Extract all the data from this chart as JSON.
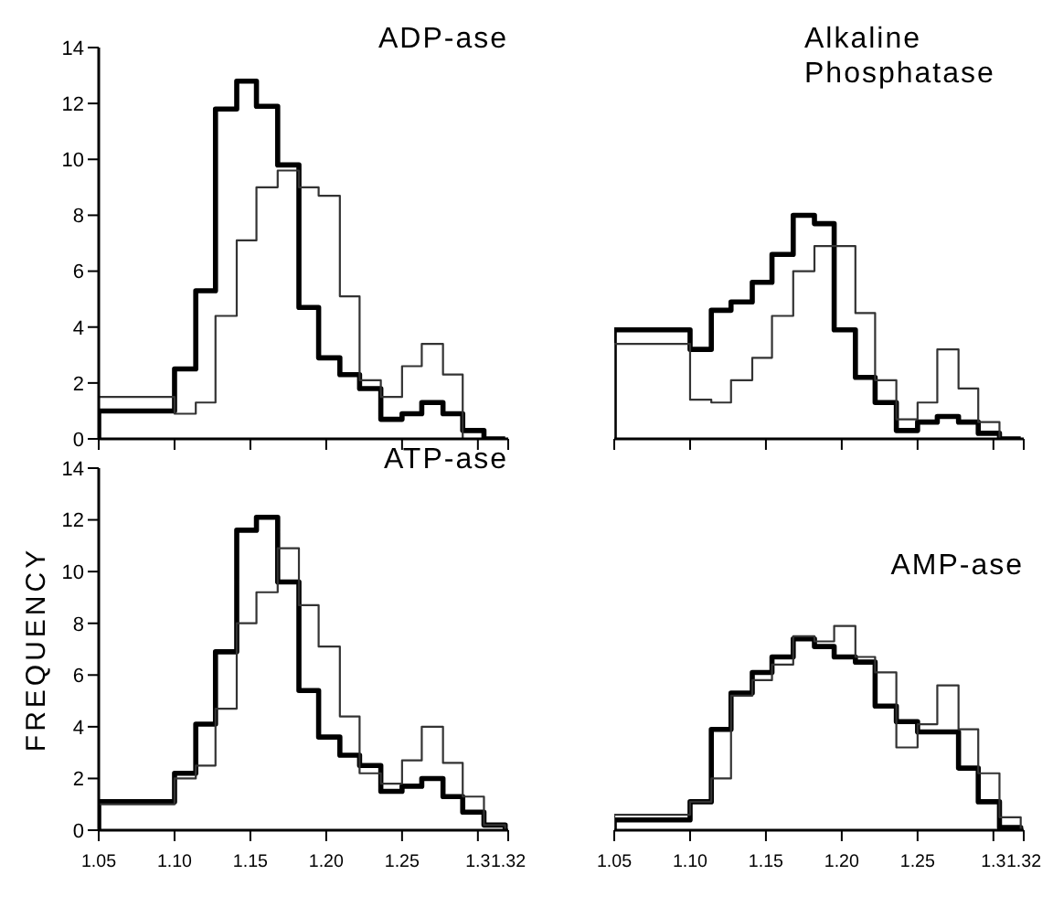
{
  "chart_data": [
    {
      "type": "histogram",
      "title": "ADP-ase",
      "bins": [
        1.05,
        1.1,
        1.114,
        1.127,
        1.141,
        1.154,
        1.168,
        1.182,
        1.195,
        1.209,
        1.222,
        1.236,
        1.25,
        1.263,
        1.277,
        1.29,
        1.304,
        1.318
      ],
      "xlim": [
        1.05,
        1.32
      ],
      "xticks": [
        {
          "value": 1.05,
          "label": null
        },
        {
          "value": 1.1,
          "label": null
        },
        {
          "value": 1.15,
          "label": null
        },
        {
          "value": 1.2,
          "label": null
        },
        {
          "value": 1.25,
          "label": null
        },
        {
          "value": 1.3,
          "label": null
        },
        {
          "value": 1.32,
          "label": null
        }
      ],
      "ylim": [
        0,
        14
      ],
      "yticks": [
        0,
        2,
        4,
        6,
        8,
        10,
        12,
        14
      ],
      "tick_labels": "y",
      "series": [
        {
          "color": "#000000",
          "values": [
            1.0,
            2.5,
            5.3,
            11.8,
            12.8,
            11.9,
            9.8,
            4.7,
            2.9,
            2.3,
            1.8,
            0.7,
            0.9,
            1.3,
            0.9,
            0.3,
            0
          ]
        },
        {
          "color": "#333333",
          "values": [
            1.5,
            0.9,
            1.3,
            4.4,
            7.1,
            9.0,
            9.6,
            9.0,
            8.7,
            5.1,
            2.1,
            1.5,
            2.6,
            3.4,
            2.3,
            0,
            0
          ]
        }
      ]
    },
    {
      "type": "histogram",
      "title": "Alkaline Phosphatase",
      "bins": [
        1.05,
        1.1,
        1.114,
        1.127,
        1.141,
        1.154,
        1.168,
        1.182,
        1.195,
        1.209,
        1.222,
        1.236,
        1.25,
        1.263,
        1.277,
        1.29,
        1.304,
        1.318
      ],
      "xlim": [
        1.05,
        1.32
      ],
      "xticks": [
        {
          "value": 1.05,
          "label": null
        },
        {
          "value": 1.1,
          "label": null
        },
        {
          "value": 1.15,
          "label": null
        },
        {
          "value": 1.2,
          "label": null
        },
        {
          "value": 1.25,
          "label": null
        },
        {
          "value": 1.3,
          "label": null
        },
        {
          "value": 1.32,
          "label": null
        }
      ],
      "ylim": [
        0,
        14
      ],
      "tick_labels": false,
      "series": [
        {
          "color": "#000000",
          "values": [
            3.9,
            3.2,
            4.6,
            4.9,
            5.6,
            6.6,
            8.0,
            7.7,
            3.9,
            2.2,
            1.3,
            0.3,
            0.6,
            0.8,
            0.6,
            0.2,
            0
          ]
        },
        {
          "color": "#333333",
          "values": [
            3.4,
            1.4,
            1.3,
            2.1,
            2.9,
            4.4,
            6.0,
            6.9,
            6.9,
            4.5,
            2.1,
            0.7,
            1.3,
            3.2,
            1.8,
            0.6,
            0
          ]
        }
      ]
    },
    {
      "type": "histogram",
      "title": "ATP-ase",
      "ylabel": "FREQUENCY",
      "bins": [
        1.05,
        1.1,
        1.114,
        1.127,
        1.141,
        1.154,
        1.168,
        1.182,
        1.195,
        1.209,
        1.222,
        1.236,
        1.25,
        1.263,
        1.277,
        1.29,
        1.304,
        1.318
      ],
      "xlim": [
        1.05,
        1.32
      ],
      "xticks": [
        {
          "value": 1.05,
          "label": "1.05"
        },
        {
          "value": 1.1,
          "label": "1.10"
        },
        {
          "value": 1.15,
          "label": "1.15"
        },
        {
          "value": 1.2,
          "label": "1.20"
        },
        {
          "value": 1.25,
          "label": "1.25"
        },
        {
          "value": 1.3,
          "label": "1.3"
        },
        {
          "value": 1.32,
          "label": "1.32"
        }
      ],
      "ylim": [
        0,
        14
      ],
      "yticks": [
        0,
        2,
        4,
        6,
        8,
        10,
        12,
        14
      ],
      "series": [
        {
          "color": "#000000",
          "values": [
            1.1,
            2.2,
            4.1,
            6.9,
            11.6,
            12.1,
            9.6,
            5.4,
            3.6,
            2.9,
            2.5,
            1.5,
            1.7,
            2.0,
            1.3,
            0.7,
            0.2
          ]
        },
        {
          "color": "#333333",
          "values": [
            1.0,
            2.0,
            2.5,
            4.7,
            8.0,
            9.2,
            10.9,
            8.7,
            7.1,
            4.4,
            2.2,
            1.8,
            2.7,
            4.0,
            2.6,
            1.3,
            0.2
          ]
        }
      ]
    },
    {
      "type": "histogram",
      "title": "AMP-ase",
      "bins": [
        1.05,
        1.1,
        1.114,
        1.127,
        1.141,
        1.154,
        1.168,
        1.182,
        1.195,
        1.209,
        1.222,
        1.236,
        1.25,
        1.263,
        1.277,
        1.29,
        1.304,
        1.318
      ],
      "xlim": [
        1.05,
        1.32
      ],
      "xticks": [
        {
          "value": 1.05,
          "label": "1.05"
        },
        {
          "value": 1.1,
          "label": "1.10"
        },
        {
          "value": 1.15,
          "label": "1.15"
        },
        {
          "value": 1.2,
          "label": "1.20"
        },
        {
          "value": 1.25,
          "label": "1.25"
        },
        {
          "value": 1.3,
          "label": "1.3"
        },
        {
          "value": 1.32,
          "label": "1.32"
        }
      ],
      "ylim": [
        0,
        14
      ],
      "tick_labels": "x",
      "series": [
        {
          "color": "#000000",
          "values": [
            0.4,
            1.1,
            3.9,
            5.3,
            6.1,
            6.7,
            7.4,
            7.1,
            6.7,
            6.5,
            4.8,
            4.2,
            3.8,
            3.8,
            2.4,
            1.1,
            0.1
          ]
        },
        {
          "color": "#333333",
          "values": [
            0.6,
            1.1,
            2.0,
            5.2,
            5.8,
            6.4,
            7.5,
            7.3,
            7.9,
            6.7,
            6.1,
            3.2,
            4.1,
            5.6,
            3.9,
            2.2,
            0.5
          ]
        }
      ]
    }
  ]
}
